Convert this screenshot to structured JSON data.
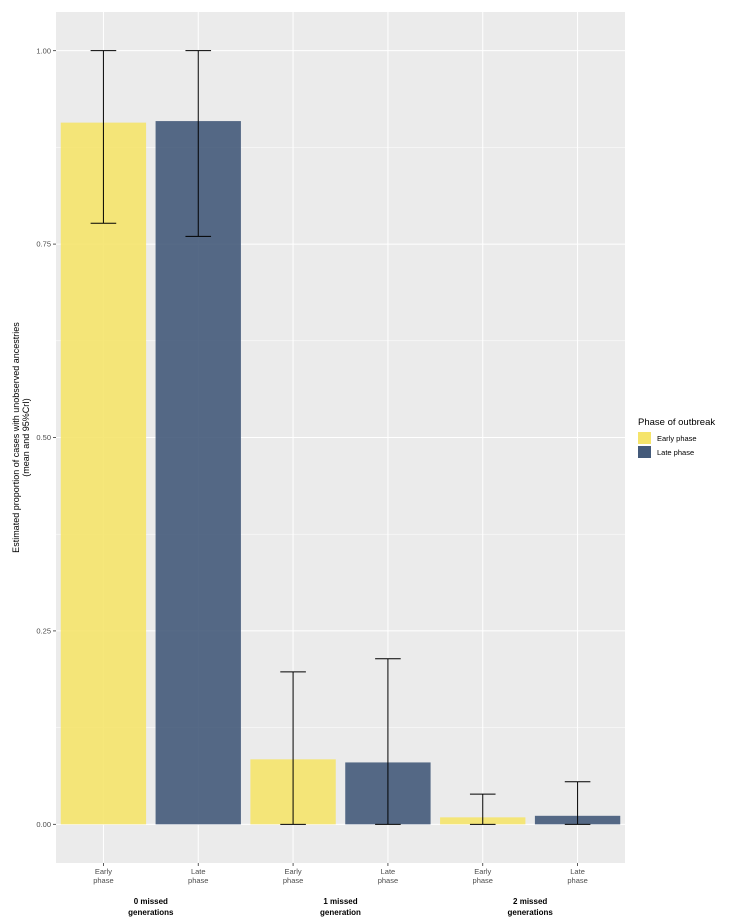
{
  "chart_data": {
    "type": "bar",
    "ylabel_lines": [
      "Estimated proportion of cases with unobserved ancestries",
      "(mean and 95%CrI)"
    ],
    "ylim": [
      -0.05,
      1.05
    ],
    "yticks": [
      "0.00",
      "0.25",
      "0.50",
      "0.75",
      "1.00"
    ],
    "grid": true,
    "legend_position": "right",
    "legend": {
      "title": "Phase of outbreak",
      "entries": [
        "Early phase",
        "Late phase"
      ]
    },
    "colors": {
      "Early phase": "#f5e46b",
      "Late phase": "#445a7a",
      "panel": "#ebebeb",
      "grid": "#ffffff"
    },
    "groups": [
      {
        "label_lines": [
          "0 missed",
          "generations"
        ],
        "bars": [
          {
            "phase": "Early phase",
            "tick_lines": [
              "Early",
              "phase"
            ],
            "mean": 0.907,
            "lower": 0.777,
            "upper": 1.0
          },
          {
            "phase": "Late phase",
            "tick_lines": [
              "Late",
              "phase"
            ],
            "mean": 0.909,
            "lower": 0.76,
            "upper": 1.0
          }
        ]
      },
      {
        "label_lines": [
          "1 missed",
          "generation"
        ],
        "bars": [
          {
            "phase": "Early phase",
            "tick_lines": [
              "Early",
              "phase"
            ],
            "mean": 0.084,
            "lower": 0.0,
            "upper": 0.197
          },
          {
            "phase": "Late phase",
            "tick_lines": [
              "Late",
              "phase"
            ],
            "mean": 0.08,
            "lower": 0.0,
            "upper": 0.214
          }
        ]
      },
      {
        "label_lines": [
          "2 missed",
          "generations"
        ],
        "bars": [
          {
            "phase": "Early phase",
            "tick_lines": [
              "Early",
              "phase"
            ],
            "mean": 0.009,
            "lower": 0.0,
            "upper": 0.039
          },
          {
            "phase": "Late phase",
            "tick_lines": [
              "Late",
              "phase"
            ],
            "mean": 0.011,
            "lower": 0.0,
            "upper": 0.055
          }
        ]
      }
    ]
  }
}
